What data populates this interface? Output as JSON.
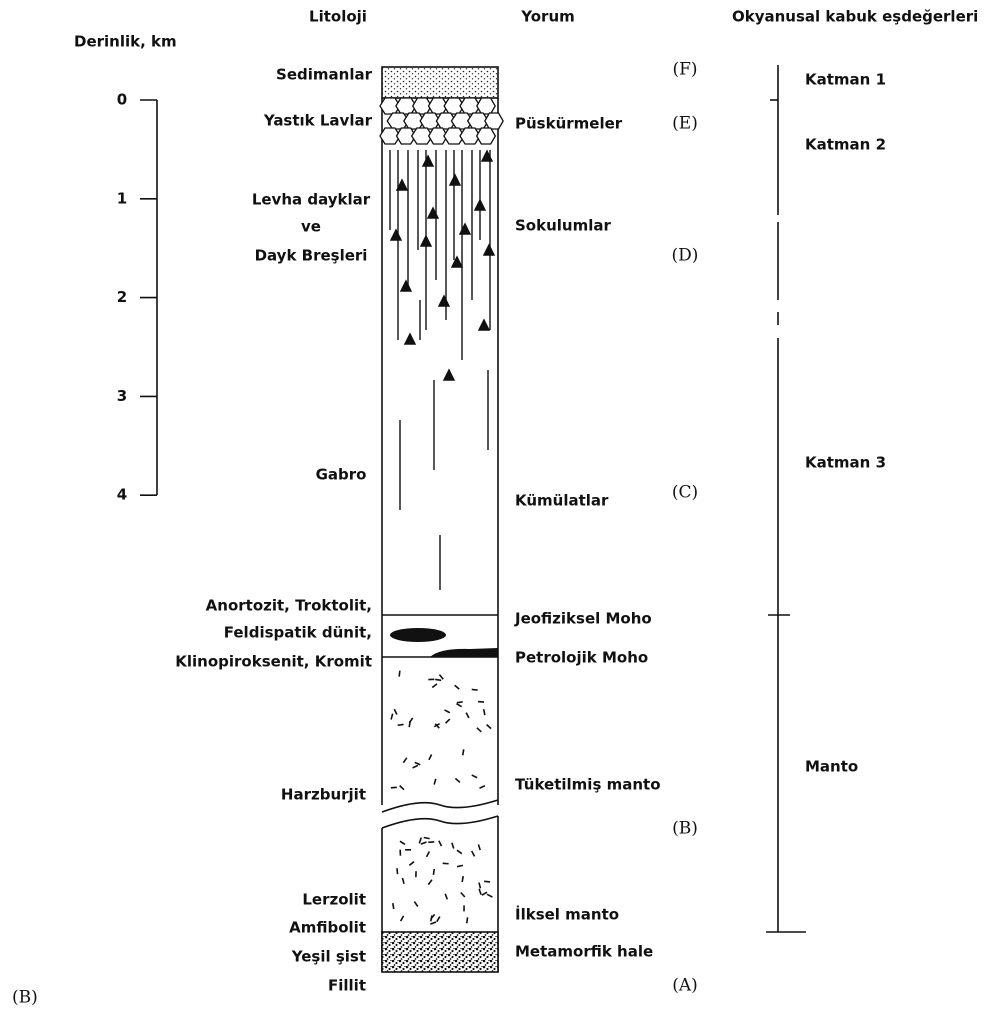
{
  "headers": {
    "lithology": "Litoloji",
    "interpretation": "Yorum",
    "oceanic_crust": "Okyanusal kabuk eşdeğerleri"
  },
  "depth_scale": {
    "label": "Derinlik, km",
    "ticks": [
      0,
      1,
      2,
      3,
      4
    ]
  },
  "lithology": [
    "Sedimanlar",
    "Yastık Lavlar",
    "Levha dayklar",
    "ve",
    "Dayk Breşleri",
    "Gabro",
    "Anortozit, Troktolit,",
    "Feldispatik dünit,",
    "Klinopiroksenit, Kromit",
    "Harzburjit",
    "Lerzolit",
    "Amfibolit",
    "Yeşil şist",
    "Fillit"
  ],
  "interpretation": [
    "Püskürmeler",
    "Sokulumlar",
    "Kümülatlar",
    "Jeofiziksel Moho",
    "Petrolojik Moho",
    "Tüketilmiş manto",
    "İlksel manto",
    "Metamorfik hale"
  ],
  "letters": [
    "(F)",
    "(E)",
    "(D)",
    "(C)",
    "(B)",
    "(A)"
  ],
  "layers": [
    "Katman 1",
    "Katman 2",
    "Katman 3",
    "Manto"
  ],
  "figure_label": "(B)"
}
